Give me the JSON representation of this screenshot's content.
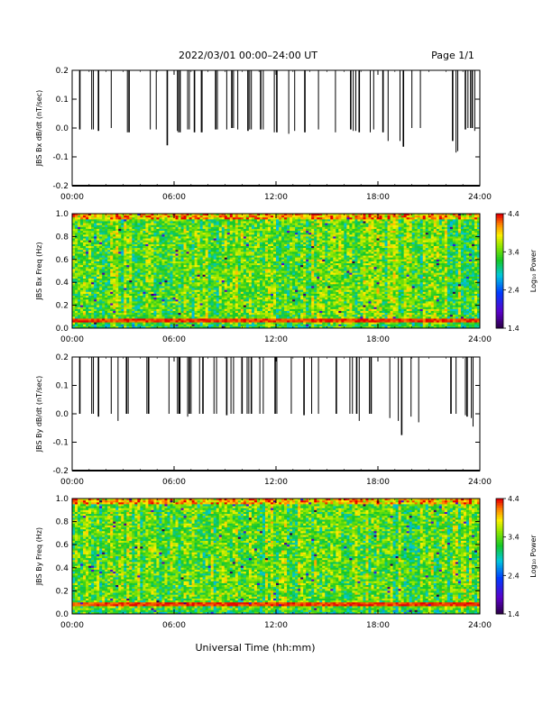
{
  "header": {
    "title": "2022/03/01   00:00–24:00 UT",
    "page": "Page 1/1"
  },
  "footer": {
    "xlabel": "Universal Time (hh:mm)"
  },
  "colorbar": {
    "label": "Log₁₀ Power",
    "ticks": [
      "1.4",
      "2.4",
      "3.4",
      "4.4"
    ],
    "range": [
      1.4,
      4.4
    ]
  },
  "chart_data": [
    {
      "type": "line",
      "ylabel": "JBS Bx dB/dt (nT/sec)",
      "xlim": [
        0,
        24
      ],
      "ylim": [
        -0.2,
        0.2
      ],
      "x_ticks": [
        "00:00",
        "06:00",
        "12:00",
        "18:00",
        "24:00"
      ],
      "y_ticks": [
        "-0.2",
        "-0.1",
        "0.0",
        "0.1",
        "0.2"
      ],
      "clipped_above": true,
      "spikes_hours": [
        0.45,
        1.15,
        1.25,
        1.55,
        2.3,
        3.25,
        3.35,
        4.6,
        4.95,
        5.6,
        6.2,
        6.25,
        6.35,
        6.8,
        6.9,
        7.2,
        7.6,
        7.65,
        8.45,
        8.55,
        9.1,
        9.4,
        9.5,
        9.75,
        10.35,
        10.45,
        10.55,
        11.1,
        11.25,
        11.9,
        12.05,
        12.75,
        13.1,
        13.7,
        14.5,
        15.5,
        16.4,
        16.55,
        16.7,
        16.9,
        17.55,
        17.75,
        18.3,
        18.6,
        19.3,
        19.5,
        20.0,
        20.5,
        22.4,
        22.6,
        22.7,
        23.15,
        23.3,
        23.45,
        23.55,
        23.7
      ],
      "spikes_min_nT_per_sec": [
        -0.005,
        -0.005,
        -0.005,
        -0.01,
        -0.0,
        -0.015,
        -0.015,
        -0.005,
        -0.005,
        -0.06,
        -0.01,
        -0.015,
        -0.015,
        -0.005,
        -0.005,
        -0.015,
        -0.015,
        -0.015,
        -0.005,
        -0.005,
        -0.005,
        -0.0,
        -0.0,
        -0.005,
        -0.01,
        -0.005,
        -0.005,
        -0.005,
        -0.005,
        -0.015,
        -0.015,
        -0.02,
        -0.01,
        -0.015,
        -0.005,
        -0.015,
        -0.005,
        -0.01,
        -0.01,
        -0.015,
        -0.015,
        -0.005,
        -0.015,
        -0.045,
        -0.045,
        -0.065,
        -0.0,
        -0.0,
        -0.045,
        -0.085,
        -0.08,
        -0.005,
        -0.0,
        -0.0,
        -0.0,
        -0.01
      ]
    },
    {
      "type": "heatmap",
      "ylabel": "JBS Bx Freq (Hz)",
      "xlim": [
        0,
        24
      ],
      "ylim": [
        0,
        1.0
      ],
      "x_ticks": [
        "00:00",
        "06:00",
        "12:00",
        "18:00",
        "24:00"
      ],
      "y_ticks": [
        "0.0",
        "0.2",
        "0.4",
        "0.6",
        "0.8",
        "1.0"
      ],
      "color_scale": "log10 power 1.4–4.4 (purple→blue→green→yellow→red)",
      "strong_line_freq_hz": 0.07,
      "strong_line_log_power": 4.3,
      "band_upper_freq_hz": 0.95,
      "background_log_power": 3.4
    },
    {
      "type": "line",
      "ylabel": "JBS By dB/dt (nT/sec)",
      "xlim": [
        0,
        24
      ],
      "ylim": [
        -0.2,
        0.2
      ],
      "x_ticks": [
        "00:00",
        "06:00",
        "12:00",
        "18:00",
        "24:00"
      ],
      "y_ticks": [
        "-0.2",
        "-0.1",
        "0.0",
        "0.1",
        "0.2"
      ],
      "clipped_above": true,
      "spikes_hours": [
        0.45,
        1.15,
        1.25,
        1.55,
        2.3,
        2.7,
        3.2,
        3.3,
        4.4,
        4.5,
        5.7,
        6.2,
        6.3,
        6.35,
        6.8,
        6.9,
        7.0,
        7.5,
        7.7,
        8.35,
        8.5,
        9.1,
        9.35,
        9.5,
        10.0,
        10.3,
        10.4,
        10.55,
        11.05,
        11.25,
        11.95,
        12.05,
        12.9,
        13.65,
        14.1,
        14.5,
        15.55,
        16.35,
        16.5,
        16.75,
        16.9,
        17.5,
        17.6,
        18.7,
        19.2,
        19.4,
        19.95,
        20.4,
        22.3,
        22.6,
        23.15,
        23.25,
        23.5,
        23.6
      ],
      "spikes_min_nT_per_sec": [
        -0.0,
        -0.0,
        -0.0,
        -0.01,
        -0.0,
        -0.025,
        -0.0,
        -0.0,
        -0.0,
        -0.0,
        -0.0,
        -0.0,
        -0.0,
        -0.0,
        -0.01,
        -0.0,
        -0.0,
        -0.0,
        -0.0,
        -0.0,
        -0.0,
        -0.005,
        -0.0,
        -0.0,
        -0.0,
        -0.0,
        -0.0,
        -0.0,
        -0.0,
        -0.0,
        -0.0,
        -0.0,
        -0.0,
        -0.005,
        -0.0,
        -0.0,
        -0.0,
        -0.0,
        -0.0,
        -0.0,
        -0.025,
        -0.0,
        -0.0,
        -0.015,
        -0.025,
        -0.075,
        -0.01,
        -0.03,
        -0.0,
        -0.0,
        -0.005,
        -0.01,
        -0.015,
        -0.045
      ]
    },
    {
      "type": "heatmap",
      "ylabel": "JBS By Freq (Hz)",
      "xlim": [
        0,
        24
      ],
      "ylim": [
        0,
        1.0
      ],
      "x_ticks": [
        "00:00",
        "06:00",
        "12:00",
        "18:00",
        "24:00"
      ],
      "y_ticks": [
        "0.0",
        "0.2",
        "0.4",
        "0.6",
        "0.8",
        "1.0"
      ],
      "color_scale": "log10 power 1.4–4.4 (purple→blue→green→yellow→red)",
      "strong_line_freq_hz": 0.08,
      "strong_line_log_power": 4.3,
      "band_upper_freq_hz": 0.95,
      "background_log_power": 3.4
    }
  ]
}
